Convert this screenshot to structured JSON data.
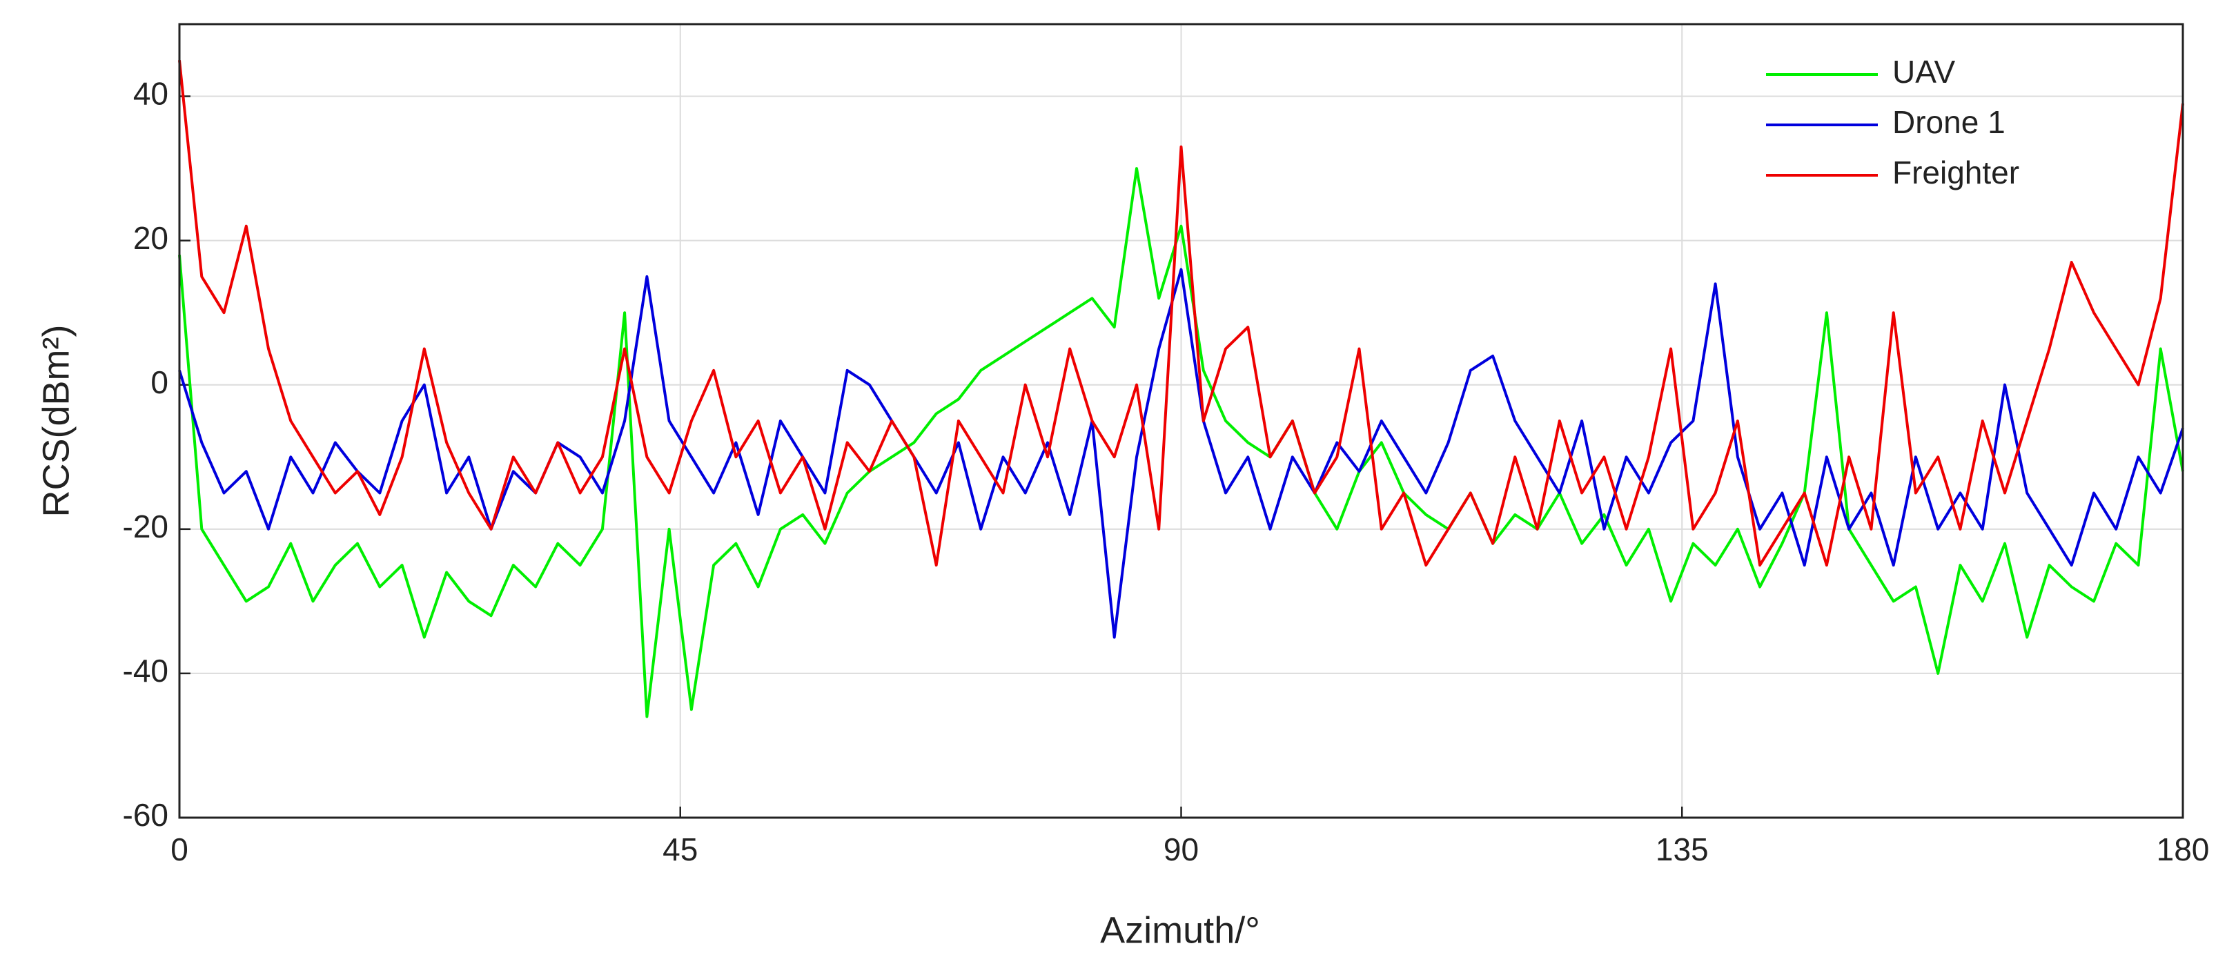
{
  "chart_data": {
    "type": "line",
    "xlabel": "Azimuth/°",
    "ylabel": "RCS(dBm²)",
    "x": [
      0,
      2,
      4,
      6,
      8,
      10,
      12,
      14,
      16,
      18,
      20,
      22,
      24,
      26,
      28,
      30,
      32,
      34,
      36,
      38,
      40,
      42,
      44,
      46,
      48,
      50,
      52,
      54,
      56,
      58,
      60,
      62,
      64,
      66,
      68,
      70,
      72,
      74,
      76,
      78,
      80,
      82,
      84,
      86,
      88,
      90,
      92,
      94,
      96,
      98,
      100,
      102,
      104,
      106,
      108,
      110,
      112,
      114,
      116,
      118,
      120,
      122,
      124,
      126,
      128,
      130,
      132,
      134,
      136,
      138,
      140,
      142,
      144,
      146,
      148,
      150,
      152,
      154,
      156,
      158,
      160,
      162,
      164,
      166,
      168,
      170,
      172,
      174,
      176,
      178,
      180
    ],
    "series": [
      {
        "name": "UAV",
        "color": "#00ee00",
        "values": [
          18,
          -20,
          -25,
          -30,
          -28,
          -22,
          -30,
          -25,
          -22,
          -28,
          -25,
          -35,
          -26,
          -30,
          -32,
          -25,
          -28,
          -22,
          -25,
          -20,
          10,
          -46,
          -20,
          -45,
          -25,
          -22,
          -28,
          -20,
          -18,
          -22,
          -15,
          -12,
          -10,
          -8,
          -4,
          -2,
          2,
          4,
          6,
          8,
          10,
          12,
          8,
          30,
          12,
          22,
          2,
          -5,
          -8,
          -10,
          -5,
          -15,
          -20,
          -12,
          -8,
          -15,
          -18,
          -20,
          -15,
          -22,
          -18,
          -20,
          -15,
          -22,
          -18,
          -25,
          -20,
          -30,
          -22,
          -25,
          -20,
          -28,
          -22,
          -15,
          10,
          -20,
          -25,
          -30,
          -28,
          -40,
          -25,
          -30,
          -22,
          -35,
          -25,
          -28,
          -30,
          -22,
          -25,
          5,
          -12
        ]
      },
      {
        "name": "Drone 1",
        "color": "#0000dd",
        "values": [
          2,
          -8,
          -15,
          -12,
          -20,
          -10,
          -15,
          -8,
          -12,
          -15,
          -5,
          0,
          -15,
          -10,
          -20,
          -12,
          -15,
          -8,
          -10,
          -15,
          -5,
          15,
          -5,
          -10,
          -15,
          -8,
          -18,
          -5,
          -10,
          -15,
          2,
          0,
          -5,
          -10,
          -15,
          -8,
          -20,
          -10,
          -15,
          -8,
          -18,
          -5,
          -35,
          -10,
          5,
          16,
          -5,
          -15,
          -10,
          -20,
          -10,
          -15,
          -8,
          -12,
          -5,
          -10,
          -15,
          -8,
          2,
          4,
          -5,
          -10,
          -15,
          -5,
          -20,
          -10,
          -15,
          -8,
          -5,
          14,
          -10,
          -20,
          -15,
          -25,
          -10,
          -20,
          -15,
          -25,
          -10,
          -20,
          -15,
          -20,
          0,
          -15,
          -20,
          -25,
          -15,
          -20,
          -10,
          -15,
          -6
        ]
      },
      {
        "name": "Freighter",
        "color": "#ee0000",
        "values": [
          45,
          15,
          10,
          22,
          5,
          -5,
          -10,
          -15,
          -12,
          -18,
          -10,
          5,
          -8,
          -15,
          -20,
          -10,
          -15,
          -8,
          -15,
          -10,
          5,
          -10,
          -15,
          -5,
          2,
          -10,
          -5,
          -15,
          -10,
          -20,
          -8,
          -12,
          -5,
          -10,
          -25,
          -5,
          -10,
          -15,
          0,
          -10,
          5,
          -5,
          -10,
          0,
          -20,
          33,
          -5,
          5,
          8,
          -10,
          -5,
          -15,
          -10,
          5,
          -20,
          -15,
          -25,
          -20,
          -15,
          -22,
          -10,
          -20,
          -5,
          -15,
          -10,
          -20,
          -10,
          5,
          -20,
          -15,
          -5,
          -25,
          -20,
          -15,
          -25,
          -10,
          -20,
          10,
          -15,
          -10,
          -20,
          -5,
          -15,
          -5,
          5,
          17,
          10,
          5,
          0,
          12,
          39
        ]
      }
    ],
    "xlim": [
      0,
      180
    ],
    "xticks": [
      0,
      45,
      90,
      135,
      180
    ],
    "ylim": [
      -60,
      50
    ],
    "yticks": [
      -60,
      -40,
      -20,
      0,
      20,
      40
    ],
    "grid": true,
    "legend": "upper right"
  }
}
